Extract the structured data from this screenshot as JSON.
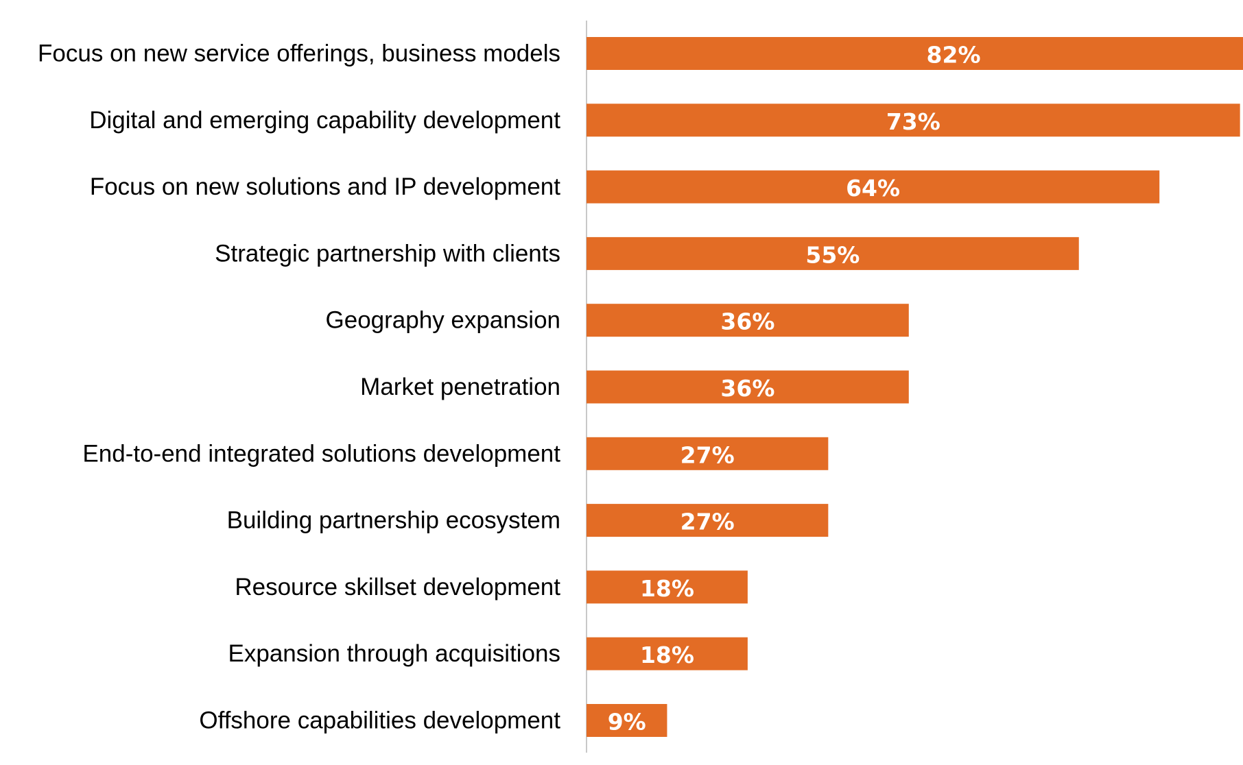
{
  "chart_data": {
    "type": "bar",
    "orientation": "horizontal",
    "categories": [
      "Focus on new service offerings, business models",
      "Digital and emerging capability development",
      "Focus on new solutions and IP development",
      "Strategic partnership with clients",
      "Geography expansion",
      "Market penetration",
      "End-to-end integrated solutions development",
      "Building partnership ecosystem",
      "Resource skillset development",
      "Expansion through acquisitions",
      "Offshore capabilities development"
    ],
    "values": [
      82,
      73,
      64,
      55,
      36,
      36,
      27,
      27,
      18,
      18,
      9
    ],
    "value_labels": [
      "82%",
      "73%",
      "64%",
      "55%",
      "36%",
      "36%",
      "27%",
      "27%",
      "18%",
      "18%",
      "9%"
    ],
    "title": "",
    "xlabel": "",
    "ylabel": "",
    "xlim": [
      0,
      100
    ],
    "grid": false,
    "legend": "none",
    "colors": {
      "bar": "#E36C25",
      "axis": "#C8C8C8",
      "value_text": "#FFFFFF",
      "category_text": "#000000"
    }
  }
}
